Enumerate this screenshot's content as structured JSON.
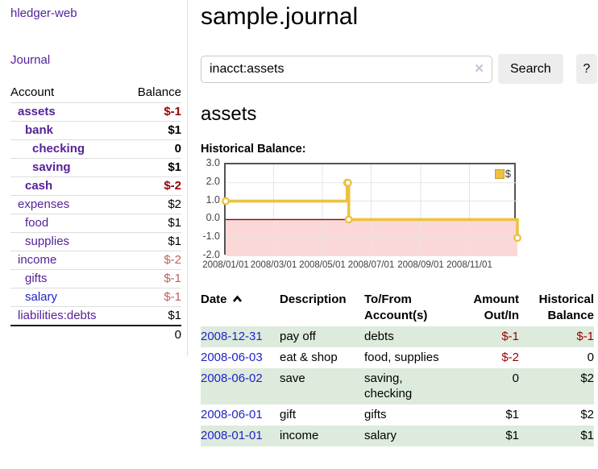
{
  "app": {
    "title": "hledger-web"
  },
  "colors": {
    "link_visited": "#552299",
    "link_unvisited": "#2222cc",
    "negative_strong": "#990000",
    "negative_soft": "#c0605f",
    "row_stripe": "#ddebdc"
  },
  "sidebar": {
    "journal_link": "Journal",
    "headers": {
      "account": "Account",
      "balance": "Balance"
    },
    "accounts": [
      {
        "name": "assets",
        "balance": "$-1",
        "indent": 0,
        "highlighted": true,
        "balance_color": "negative-strong",
        "link_color": "visited"
      },
      {
        "name": "bank",
        "balance": "$1",
        "indent": 1,
        "highlighted": true,
        "balance_color": "normal",
        "link_color": "visited"
      },
      {
        "name": "checking",
        "balance": "0",
        "indent": 2,
        "highlighted": true,
        "balance_color": "normal",
        "link_color": "visited"
      },
      {
        "name": "saving",
        "balance": "$1",
        "indent": 2,
        "highlighted": true,
        "balance_color": "normal",
        "link_color": "visited"
      },
      {
        "name": "cash",
        "balance": "$-2",
        "indent": 1,
        "highlighted": true,
        "balance_color": "negative-strong",
        "link_color": "visited"
      },
      {
        "name": "expenses",
        "balance": "$2",
        "indent": 0,
        "highlighted": false,
        "balance_color": "normal",
        "link_color": "visited"
      },
      {
        "name": "food",
        "balance": "$1",
        "indent": 1,
        "highlighted": false,
        "balance_color": "normal",
        "link_color": "visited"
      },
      {
        "name": "supplies",
        "balance": "$1",
        "indent": 1,
        "highlighted": false,
        "balance_color": "normal",
        "link_color": "visited"
      },
      {
        "name": "income",
        "balance": "$-2",
        "indent": 0,
        "highlighted": false,
        "balance_color": "negative-soft",
        "link_color": "visited"
      },
      {
        "name": "gifts",
        "balance": "$-1",
        "indent": 1,
        "highlighted": false,
        "balance_color": "negative-soft",
        "link_color": "visited"
      },
      {
        "name": "salary",
        "balance": "$-1",
        "indent": 1,
        "highlighted": false,
        "balance_color": "negative-soft",
        "link_color": "unvisited"
      },
      {
        "name": "liabilities:debts",
        "balance": "$1",
        "indent": 0,
        "highlighted": false,
        "balance_color": "normal",
        "link_color": "visited"
      }
    ],
    "total": "0"
  },
  "main": {
    "title": "sample.journal",
    "search": {
      "value": "inacct:assets",
      "clear_icon": "✕",
      "search_button": "Search",
      "help_button": "?"
    },
    "account_heading": "assets",
    "chart_heading": "Historical Balance:"
  },
  "chart_data": {
    "type": "line",
    "style": "step",
    "title": "Historical Balance",
    "series": [
      {
        "name": "$",
        "color": "#EDC240",
        "points": [
          {
            "date": "2008-01-01",
            "value": 1
          },
          {
            "date": "2008-06-01",
            "value": 2
          },
          {
            "date": "2008-06-02",
            "value": 2
          },
          {
            "date": "2008-06-03",
            "value": 0
          },
          {
            "date": "2008-12-31",
            "value": -1
          }
        ]
      }
    ],
    "x_range": [
      "2008-01-01",
      "2008-12-31"
    ],
    "ylim": [
      -2,
      3
    ],
    "yticks": [
      "3.0",
      "2.0",
      "1.0",
      "0.0",
      "-1.0",
      "-2.0"
    ],
    "xticks": [
      "2008/01/01",
      "2008/03/01",
      "2008/05/01",
      "2008/07/01",
      "2008/09/01",
      "2008/11/01"
    ],
    "legend": {
      "label": "$",
      "position": "top-right",
      "swatch_color": "#EDC240"
    },
    "grid": true,
    "grid_color": "#e5e5e5",
    "border_color": "#545454",
    "zero_line_color": "#8b0000",
    "negative_region_fill": "#fad8d8",
    "marker_fill": "#ffffff"
  },
  "register": {
    "columns": [
      {
        "label": "Date",
        "align": "left",
        "sorted": "asc"
      },
      {
        "label": "Description",
        "align": "left"
      },
      {
        "label": "To/From Account(s)",
        "align": "left"
      },
      {
        "label": "Amount Out/In",
        "align": "right"
      },
      {
        "label": "Historical Balance",
        "align": "right"
      }
    ],
    "rows": [
      {
        "date": "2008-12-31",
        "description": "pay off",
        "accounts": "debts",
        "amount": "$-1",
        "amount_negative": true,
        "balance": "$-1",
        "balance_negative": true
      },
      {
        "date": "2008-06-03",
        "description": "eat & shop",
        "accounts": "food, supplies",
        "amount": "$-2",
        "amount_negative": true,
        "balance": "0",
        "balance_negative": false
      },
      {
        "date": "2008-06-02",
        "description": "save",
        "accounts": "saving, checking",
        "amount": "0",
        "amount_negative": false,
        "balance": "$2",
        "balance_negative": false
      },
      {
        "date": "2008-06-01",
        "description": "gift",
        "accounts": "gifts",
        "amount": "$1",
        "amount_negative": false,
        "balance": "$2",
        "balance_negative": false
      },
      {
        "date": "2008-01-01",
        "description": "income",
        "accounts": "salary",
        "amount": "$1",
        "amount_negative": false,
        "balance": "$1",
        "balance_negative": false
      }
    ]
  }
}
